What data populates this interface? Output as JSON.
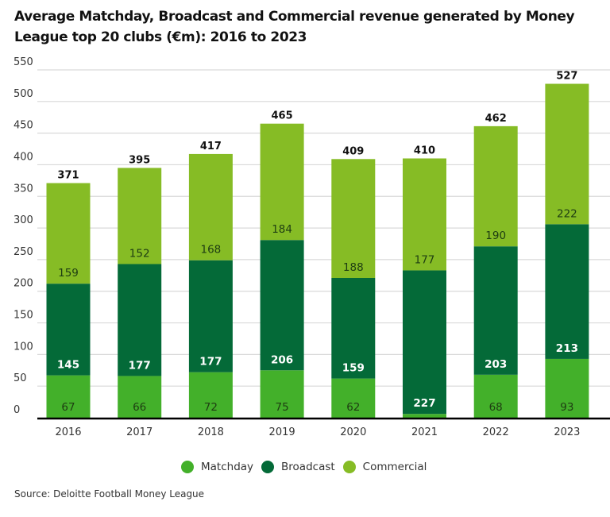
{
  "title": "Average Matchday, Broadcast and Commercial revenue generated by Money League top 20 clubs (€m): 2016 to 2023",
  "source": "Source: Deloitte Football Money League",
  "chart_data": {
    "type": "bar",
    "stacked": true,
    "title": "Average Matchday, Broadcast and Commercial revenue generated by Money League top 20 clubs (€m): 2016 to 2023",
    "xlabel": "",
    "ylabel": "",
    "categories": [
      "2016",
      "2017",
      "2018",
      "2019",
      "2020",
      "2021",
      "2022",
      "2023"
    ],
    "series": [
      {
        "name": "Matchday",
        "color": "#43b02a",
        "values": [
          67,
          66,
          72,
          75,
          62,
          6,
          68,
          93
        ],
        "labels": [
          "67",
          "66",
          "72",
          "75",
          "62",
          "",
          "68",
          "93"
        ],
        "label_color": "#1e3d12"
      },
      {
        "name": "Broadcast",
        "color": "#046a38",
        "values": [
          145,
          177,
          177,
          206,
          159,
          227,
          203,
          213
        ],
        "labels": [
          "145",
          "177",
          "177",
          "206",
          "159",
          "227",
          "203",
          "213"
        ],
        "label_color": "#ffffff"
      },
      {
        "name": "Commercial",
        "color": "#86bc25",
        "values": [
          159,
          152,
          168,
          184,
          188,
          177,
          190,
          222
        ],
        "labels": [
          "159",
          "152",
          "168",
          "184",
          "188",
          "177",
          "190",
          "222"
        ],
        "label_color": "#1e3d12"
      }
    ],
    "totals": [
      "371",
      "395",
      "417",
      "465",
      "409",
      "410",
      "462",
      "527"
    ],
    "ylim": [
      0,
      550
    ],
    "yticks": [
      "0",
      "50",
      "100",
      "150",
      "200",
      "250",
      "300",
      "350",
      "400",
      "450",
      "500",
      "550"
    ],
    "grid": true,
    "legend_position": "bottom-center"
  }
}
